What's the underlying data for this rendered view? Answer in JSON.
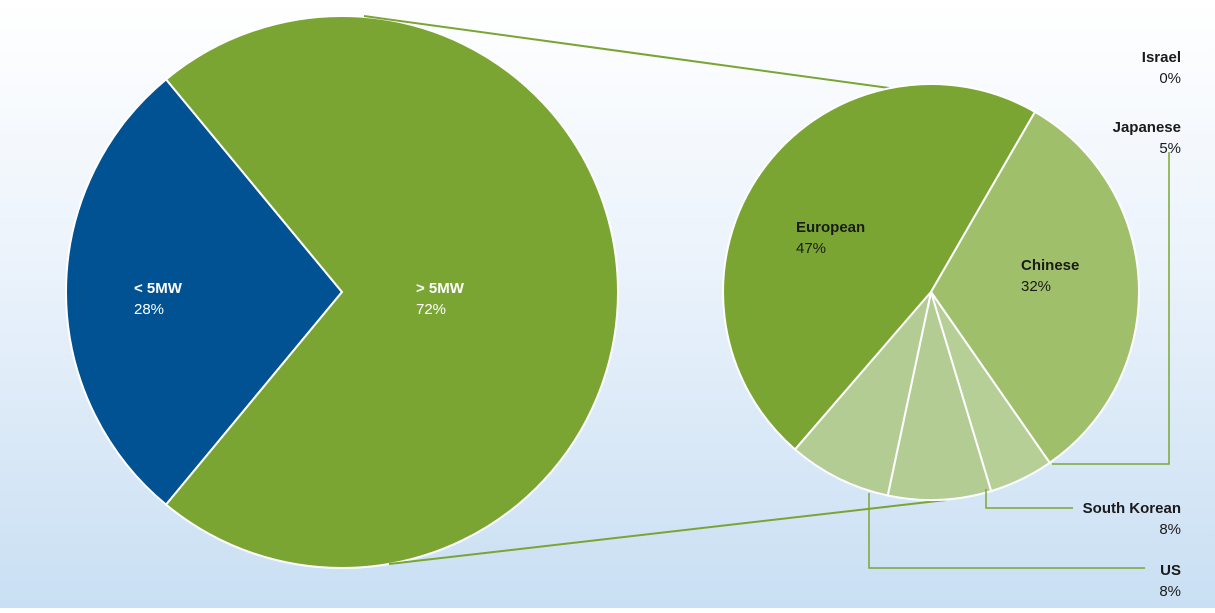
{
  "chart_data": [
    {
      "type": "pie",
      "slices": [
        {
          "label": "< 5MW",
          "value": 28,
          "value_text": "28%",
          "color": "#005293"
        },
        {
          "label": "> 5MW",
          "value": 72,
          "value_text": "72%",
          "color": "#7aa533"
        }
      ]
    },
    {
      "type": "pie",
      "slices": [
        {
          "label": "European",
          "value": 47,
          "value_text": "47%",
          "color": "#7aa533"
        },
        {
          "label": "Chinese",
          "value": 32,
          "value_text": "32%",
          "color": "#9fbf6b"
        },
        {
          "label": "Japanese",
          "value": 5,
          "value_text": "5%",
          "color": "#b5cf97"
        },
        {
          "label": "South Korean",
          "value": 8,
          "value_text": "8%",
          "color": "#b2cc94"
        },
        {
          "label": "US",
          "value": 8,
          "value_text": "8%",
          "color": "#b2cc94"
        },
        {
          "label": "Israel",
          "value": 0,
          "value_text": "0%",
          "color": "#b2cc94"
        }
      ]
    }
  ],
  "colors": {
    "connector": "#7aa533",
    "label_text": "#1a1a1a",
    "inside_label_text": "#ffffff"
  }
}
